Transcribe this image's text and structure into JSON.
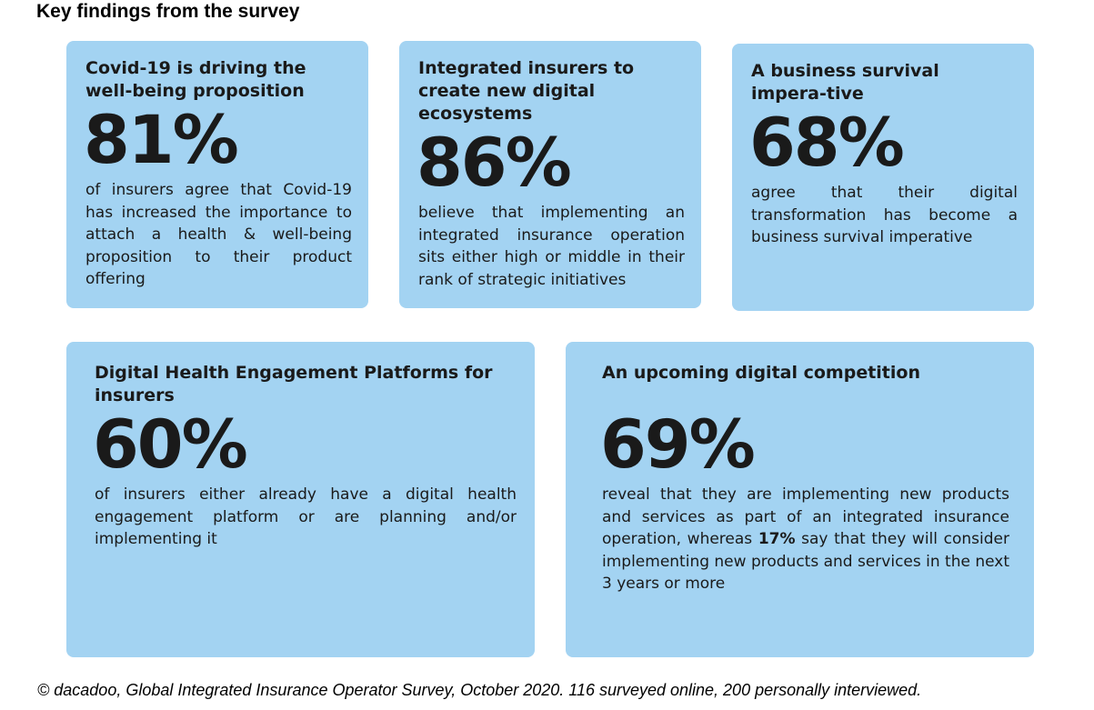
{
  "heading": "Key findings from the survey",
  "cards": [
    {
      "title": "Covid-19 is driving the well-being proposition",
      "stat": "81%",
      "description": "of insurers agree that Covid-19 has increased the importance to attach a health & well-being proposition to their product offering"
    },
    {
      "title": "Integrated insurers to create new digital ecosystems",
      "stat": "86%",
      "description": "believe that implementing an integrated insurance operation sits either high or middle in their rank of strategic initiatives"
    },
    {
      "title": "A business survival impera-tive",
      "stat": "68%",
      "description": "agree that their digital transformation has become a business survival imperative"
    },
    {
      "title": "Digital Health Engagement Platforms for insurers",
      "stat": "60%",
      "description": "of insurers either already have a digital health engagement platform or are planning and/or implementing it"
    },
    {
      "title": "An upcoming digital competition",
      "stat": "69%",
      "description_before": "reveal that they are implementing new products and services as part of an integrated insurance operation, whereas ",
      "description_highlight": "17%",
      "description_after": " say that they will consider implementing new products and services in the next 3 years or more"
    }
  ],
  "footer": "© dacadoo, Global Integrated Insurance Operator Survey, October 2020. 116 surveyed online, 200 personally interviewed."
}
